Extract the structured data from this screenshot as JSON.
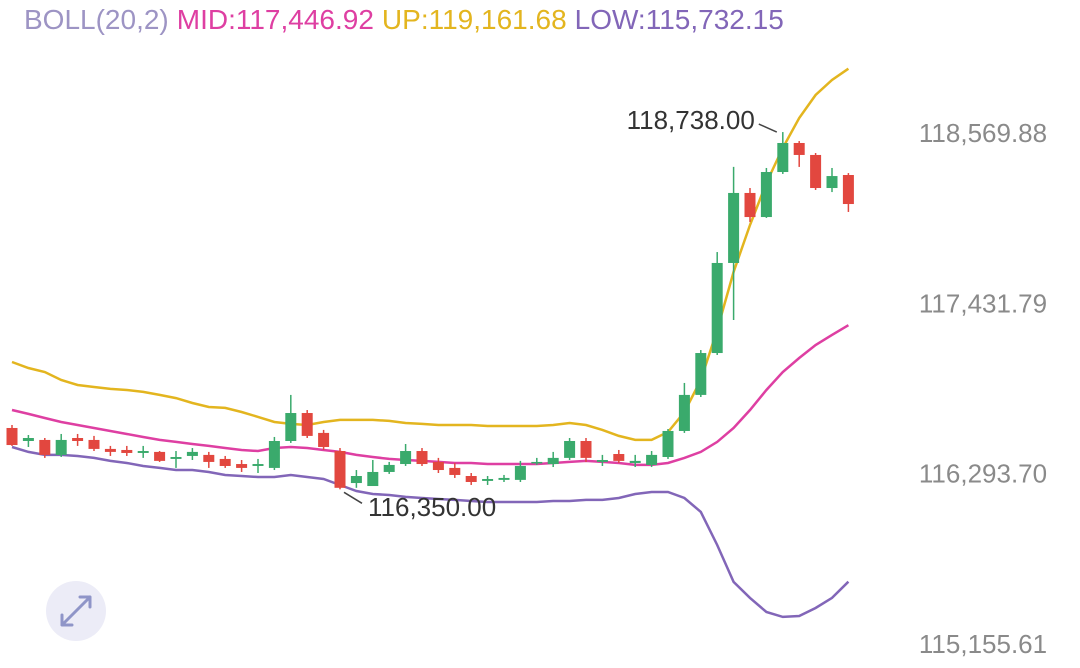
{
  "chart_data": {
    "type": "candlestick",
    "indicator": "BOLL(20,2)",
    "indicator_color": "#9d94c4",
    "categories": [
      null,
      null,
      null,
      null,
      null,
      null,
      null,
      null,
      null,
      null,
      null,
      null,
      null,
      null,
      null,
      null,
      null,
      null,
      null,
      null,
      null,
      null,
      null,
      null,
      null,
      null,
      null,
      null,
      null,
      null,
      null,
      null,
      null,
      null,
      null,
      null,
      null,
      null,
      null,
      null,
      null,
      null,
      null,
      null,
      null,
      null,
      null,
      null,
      null,
      null,
      null,
      null
    ],
    "up_color": "#3aaa6c",
    "down_color": "#e2473f",
    "open": [
      116760,
      116673,
      116680,
      116580,
      116693,
      116680,
      116620,
      116613,
      116593,
      116600,
      116553,
      116573,
      116580,
      116553,
      116519,
      116506,
      116493,
      116673,
      116860,
      116727,
      116606,
      116392,
      116372,
      116466,
      116519,
      116606,
      116533,
      116493,
      116439,
      116406,
      116413,
      116413,
      116526,
      116519,
      116560,
      116673,
      116533,
      116586,
      116526,
      116513,
      116566,
      116740,
      116981,
      117261,
      117863,
      118331,
      118170,
      118471,
      118665,
      118585,
      118364,
      118451
    ],
    "high": [
      116780,
      116713,
      116693,
      116720,
      116720,
      116707,
      116640,
      116640,
      116640,
      116606,
      116606,
      116626,
      116600,
      116573,
      116546,
      116553,
      116700,
      116981,
      116880,
      116747,
      116626,
      116479,
      116546,
      116533,
      116653,
      116626,
      116560,
      116526,
      116459,
      116439,
      116446,
      116540,
      116560,
      116600,
      116693,
      116693,
      116580,
      116613,
      116580,
      116606,
      116753,
      117061,
      117281,
      117936,
      118505,
      118364,
      118498,
      118738,
      118678,
      118598,
      118498,
      118464
    ],
    "low": [
      116640,
      116633,
      116560,
      116566,
      116640,
      116606,
      116573,
      116573,
      116560,
      116533,
      116493,
      116546,
      116493,
      116493,
      116466,
      116459,
      116479,
      116660,
      116693,
      116613,
      116350,
      116360,
      116379,
      116453,
      116506,
      116506,
      116459,
      116426,
      116379,
      116379,
      116399,
      116399,
      116513,
      116499,
      116546,
      116533,
      116506,
      116526,
      116499,
      116499,
      116553,
      116727,
      116967,
      117248,
      117482,
      118137,
      118164,
      118458,
      118505,
      118351,
      118337,
      118204
    ],
    "close": [
      116646,
      116693,
      116580,
      116680,
      116673,
      116620,
      116600,
      116593,
      116606,
      116540,
      116566,
      116600,
      116533,
      116506,
      116493,
      116519,
      116673,
      116860,
      116707,
      116633,
      116360,
      116439,
      116466,
      116513,
      116606,
      116519,
      116479,
      116446,
      116399,
      116419,
      116426,
      116506,
      116533,
      116560,
      116673,
      116560,
      116546,
      116540,
      116540,
      116580,
      116740,
      116981,
      117261,
      117863,
      118331,
      118170,
      118471,
      118665,
      118585,
      118364,
      118444,
      118257
    ],
    "series": [
      {
        "label": "MID:117,446.92",
        "color": "#de3fa2",
        "values": [
          116880,
          116854,
          116827,
          116800,
          116780,
          116760,
          116740,
          116720,
          116700,
          116680,
          116667,
          116653,
          116640,
          116626,
          116613,
          116606,
          116626,
          116633,
          116626,
          116613,
          116600,
          116580,
          116566,
          116553,
          116546,
          116540,
          116533,
          116526,
          116526,
          116519,
          116519,
          116519,
          116519,
          116526,
          116533,
          116540,
          116533,
          116526,
          116513,
          116513,
          116526,
          116560,
          116600,
          116667,
          116760,
          116880,
          117014,
          117134,
          117228,
          117315,
          117382,
          117446.92
        ]
      },
      {
        "label": "UP:119,161.68",
        "color": "#e3b51f",
        "values": [
          117201,
          117161,
          117134,
          117081,
          117047,
          117034,
          117021,
          117014,
          117001,
          116981,
          116960,
          116927,
          116900,
          116894,
          116867,
          116834,
          116800,
          116787,
          116780,
          116800,
          116814,
          116814,
          116814,
          116807,
          116793,
          116787,
          116780,
          116780,
          116780,
          116773,
          116773,
          116773,
          116773,
          116780,
          116793,
          116780,
          116747,
          116707,
          116680,
          116680,
          116733,
          116867,
          117081,
          117415,
          117803,
          118117,
          118398,
          118632,
          118832,
          118986,
          119086,
          119161.68
        ]
      },
      {
        "label": "LOW:115,732.15",
        "color": "#8266b8",
        "values": [
          116633,
          116600,
          116580,
          116580,
          116573,
          116560,
          116540,
          116526,
          116506,
          116493,
          116479,
          116479,
          116466,
          116446,
          116439,
          116432,
          116432,
          116446,
          116432,
          116419,
          116379,
          116339,
          116319,
          116312,
          116299,
          116292,
          116285,
          116279,
          116272,
          116265,
          116265,
          116265,
          116265,
          116272,
          116272,
          116279,
          116279,
          116292,
          116319,
          116332,
          116332,
          116292,
          116199,
          115978,
          115731,
          115624,
          115530,
          115497,
          115503,
          115557,
          115624,
          115732.15
        ]
      }
    ],
    "max_label": {
      "value": 118738,
      "label": "118,738.00"
    },
    "min_label": {
      "value": 116350,
      "label": "116,350.00"
    },
    "ylim": [
      115155.61,
      119320
    ],
    "yticks": [
      {
        "value": 118569.88,
        "label": "118,569.88"
      },
      {
        "value": 117431.79,
        "label": "117,431.79"
      },
      {
        "value": 116293.7,
        "label": "116,293.70"
      },
      {
        "value": 115155.61,
        "label": "115,155.61"
      }
    ]
  }
}
